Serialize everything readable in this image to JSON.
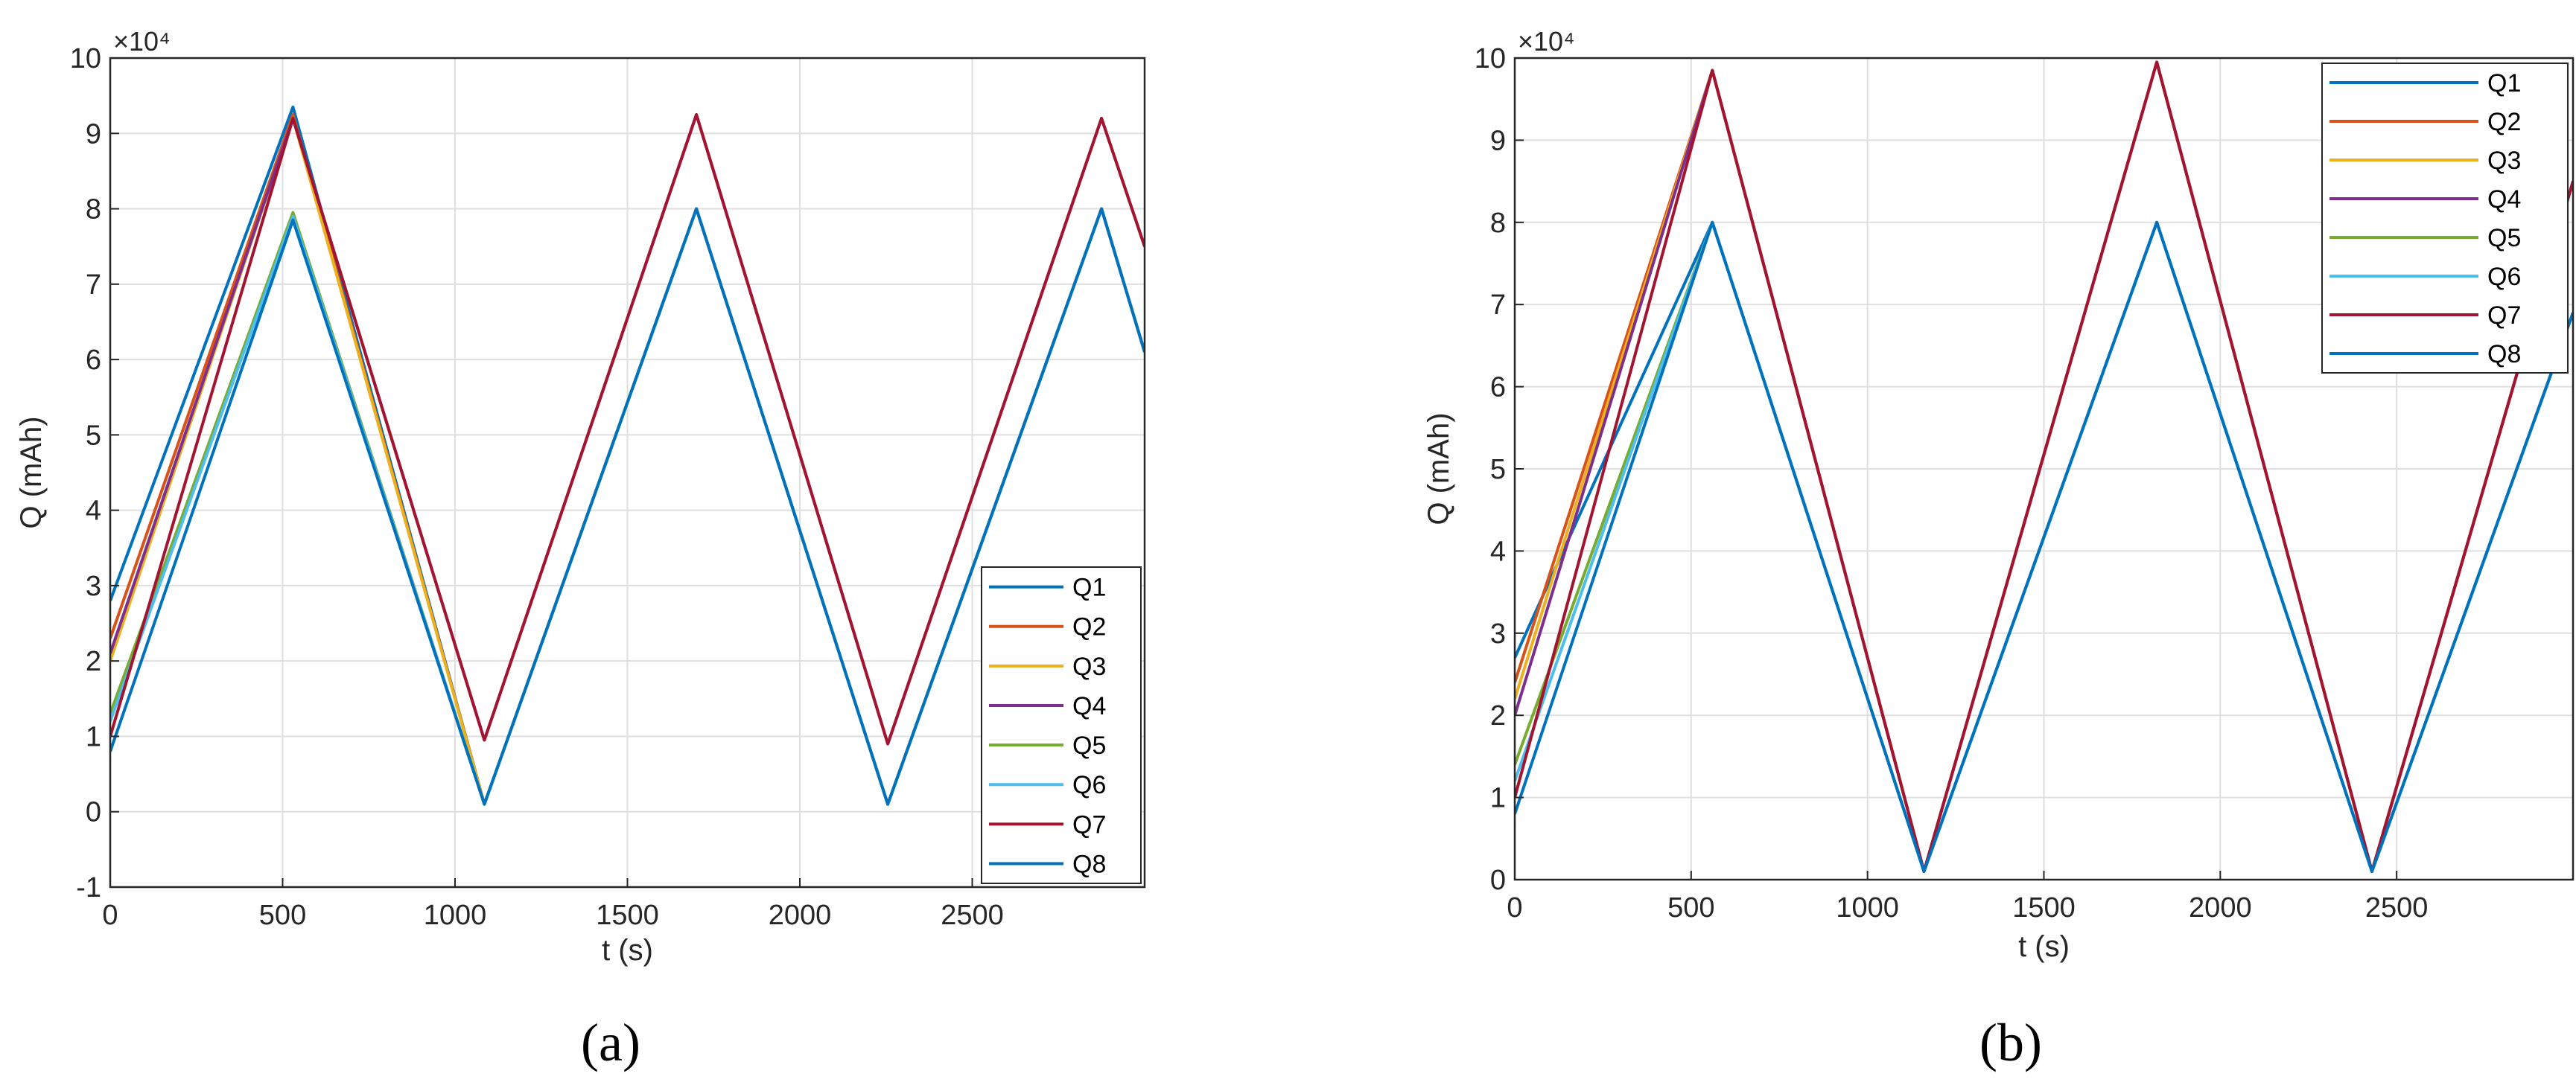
{
  "chart_data": [
    {
      "panel_label": "(a)",
      "type": "line",
      "xlabel": "t (s)",
      "ylabel": "Q (mAh)",
      "y_multiplier": "×10⁴",
      "xlim": [
        0,
        3000
      ],
      "ylim": [
        -1,
        10
      ],
      "xticks": [
        0,
        500,
        1000,
        1500,
        2000,
        2500
      ],
      "yticks": [
        -1,
        0,
        1,
        2,
        3,
        4,
        5,
        6,
        7,
        8,
        9,
        10
      ],
      "grid": true,
      "legend_position": "bottom-right",
      "series": [
        {
          "name": "Q1",
          "color": "#0072BD",
          "x": [
            0,
            530,
            1085,
            1700,
            2255,
            2875,
            3000
          ],
          "y": [
            2.8,
            9.35,
            0.1,
            8.0,
            0.1,
            8.0,
            6.1
          ]
        },
        {
          "name": "Q2",
          "color": "#D95319",
          "x": [
            0,
            530,
            1085,
            1700,
            2255,
            2875,
            3000
          ],
          "y": [
            2.3,
            9.25,
            0.1,
            8.0,
            0.1,
            8.0,
            6.1
          ]
        },
        {
          "name": "Q3",
          "color": "#EDB120",
          "x": [
            0,
            530,
            1085,
            1700,
            2255,
            2875,
            3000
          ],
          "y": [
            2.0,
            9.2,
            0.1,
            8.0,
            0.1,
            8.0,
            6.1
          ]
        },
        {
          "name": "Q4",
          "color": "#7E2F8E",
          "x": [
            0,
            530,
            1085,
            1700,
            2255,
            2875,
            3000
          ],
          "y": [
            2.1,
            9.2,
            0.95,
            9.25,
            0.9,
            9.2,
            7.5
          ]
        },
        {
          "name": "Q5",
          "color": "#77AC30",
          "x": [
            0,
            530,
            1085,
            1700,
            2255,
            2875,
            3000
          ],
          "y": [
            1.3,
            7.95,
            0.1,
            8.0,
            0.1,
            8.0,
            6.1
          ]
        },
        {
          "name": "Q6",
          "color": "#4DBEEE",
          "x": [
            0,
            530,
            1085,
            1700,
            2255,
            2875,
            3000
          ],
          "y": [
            1.2,
            7.9,
            0.1,
            8.0,
            0.1,
            8.0,
            6.1
          ]
        },
        {
          "name": "Q7",
          "color": "#A2142F",
          "x": [
            0,
            530,
            1085,
            1700,
            2255,
            2875,
            3000
          ],
          "y": [
            1.0,
            9.2,
            0.95,
            9.25,
            0.9,
            9.2,
            7.5
          ]
        },
        {
          "name": "Q8",
          "color": "#0072BD",
          "x": [
            0,
            530,
            1085,
            1700,
            2255,
            2875,
            3000
          ],
          "y": [
            0.8,
            7.85,
            0.1,
            8.0,
            0.1,
            8.0,
            6.1
          ]
        }
      ]
    },
    {
      "panel_label": "(b)",
      "type": "line",
      "xlabel": "t (s)",
      "ylabel": "Q (mAh)",
      "y_multiplier": "×10⁴",
      "xlim": [
        0,
        3000
      ],
      "ylim": [
        0,
        10
      ],
      "xticks": [
        0,
        500,
        1000,
        1500,
        2000,
        2500
      ],
      "yticks": [
        0,
        1,
        2,
        3,
        4,
        5,
        6,
        7,
        8,
        9,
        10
      ],
      "grid": true,
      "legend_position": "top-right",
      "series": [
        {
          "name": "Q1",
          "color": "#0072BD",
          "x": [
            0,
            560,
            1160,
            1820,
            2430,
            3000
          ],
          "y": [
            2.7,
            8.0,
            0.1,
            8.0,
            0.1,
            6.9
          ]
        },
        {
          "name": "Q2",
          "color": "#D95319",
          "x": [
            0,
            560,
            1160,
            1820,
            2430,
            3000
          ],
          "y": [
            2.4,
            9.85,
            0.1,
            9.95,
            0.1,
            8.5
          ]
        },
        {
          "name": "Q3",
          "color": "#EDB120",
          "x": [
            0,
            560,
            1160,
            1820,
            2430,
            3000
          ],
          "y": [
            2.2,
            9.85,
            0.1,
            9.95,
            0.1,
            8.5
          ]
        },
        {
          "name": "Q4",
          "color": "#7E2F8E",
          "x": [
            0,
            560,
            1160,
            1820,
            2430,
            3000
          ],
          "y": [
            2.0,
            9.85,
            0.1,
            9.95,
            0.1,
            8.5
          ]
        },
        {
          "name": "Q5",
          "color": "#77AC30",
          "x": [
            0,
            560,
            1160,
            1820,
            2430,
            3000
          ],
          "y": [
            1.4,
            8.0,
            0.1,
            8.0,
            0.1,
            6.9
          ]
        },
        {
          "name": "Q6",
          "color": "#4DBEEE",
          "x": [
            0,
            560,
            1160,
            1820,
            2430,
            3000
          ],
          "y": [
            1.2,
            8.0,
            0.1,
            8.0,
            0.1,
            6.9
          ]
        },
        {
          "name": "Q7",
          "color": "#A2142F",
          "x": [
            0,
            560,
            1160,
            1820,
            2430,
            3000
          ],
          "y": [
            1.0,
            9.85,
            0.1,
            9.95,
            0.1,
            8.5
          ]
        },
        {
          "name": "Q8",
          "color": "#0072BD",
          "x": [
            0,
            560,
            1160,
            1820,
            2430,
            3000
          ],
          "y": [
            0.8,
            8.0,
            0.1,
            8.0,
            0.1,
            6.9
          ]
        }
      ]
    }
  ]
}
